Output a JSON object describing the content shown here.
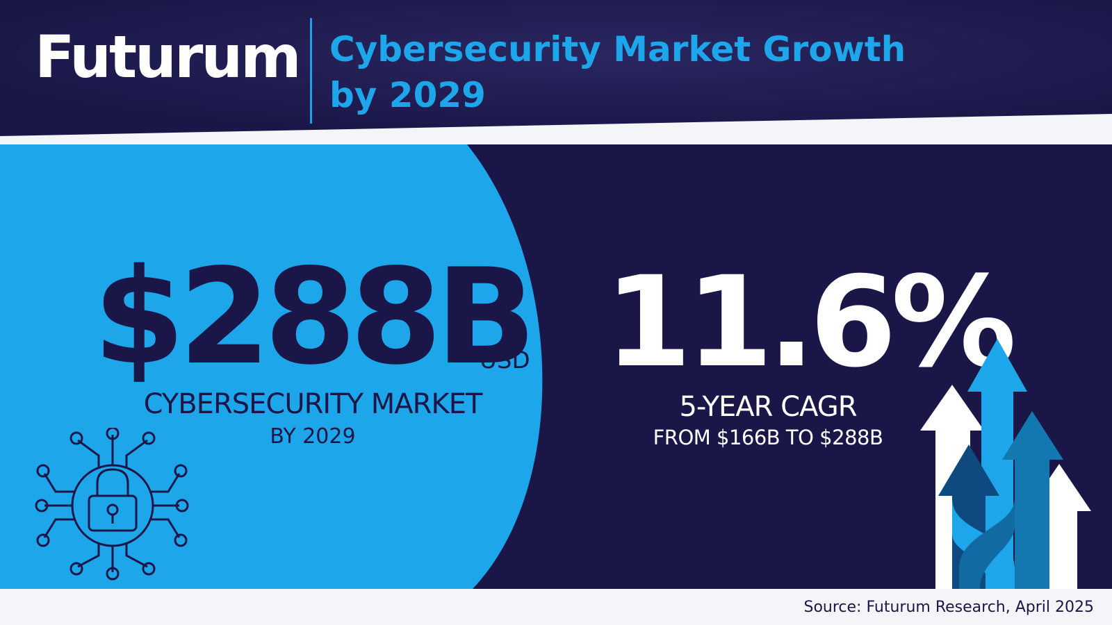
{
  "header": {
    "logo": "Futurum",
    "title_line1": "Cybersecurity Market Growth",
    "title_line2": "by 2029"
  },
  "market": {
    "value": "$288B",
    "unit": "USD",
    "label": "CYBERSECURITY MARKET",
    "sub": "BY 2029"
  },
  "cagr": {
    "value": "11.6%",
    "label": "5-YEAR CAGR",
    "sub": "FROM $166B TO $288B"
  },
  "footer": {
    "source": "Source: Futurum Research, April 2025"
  },
  "colors": {
    "navy": "#1a1748",
    "blue": "#1ea6ea",
    "light": "#f4f5f9"
  },
  "icons": [
    "padlock-network-icon",
    "growth-arrows-icon"
  ]
}
